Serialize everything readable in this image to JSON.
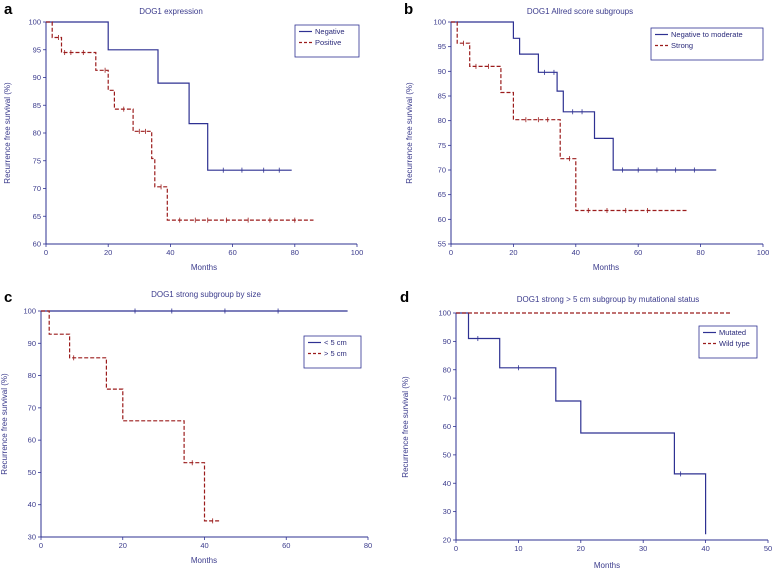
{
  "chart_data": [
    {
      "type": "line",
      "panel_label": "a",
      "title": "DOG1 expression",
      "xlabel": "Months",
      "ylabel": "Recurrence free survival (%)",
      "xlim": [
        0,
        100
      ],
      "ylim": [
        60,
        100
      ],
      "xticks": [
        0,
        20,
        40,
        60,
        80,
        100
      ],
      "yticks": [
        60,
        65,
        70,
        75,
        80,
        85,
        90,
        95,
        100
      ],
      "legend_position": "top-right",
      "series": [
        {
          "name": "Negative",
          "color": "#2e3192",
          "dash": "solid",
          "steps": [
            [
              0,
              100
            ],
            [
              20,
              95
            ],
            [
              36,
              89
            ],
            [
              46,
              81.7
            ],
            [
              52,
              73.3
            ],
            [
              79,
              73.3
            ]
          ],
          "censors": [
            [
              57,
              73.3
            ],
            [
              63,
              73.3
            ],
            [
              70,
              73.3
            ],
            [
              75,
              73.3
            ]
          ]
        },
        {
          "name": "Positive",
          "color": "#9b1c1c",
          "dash": "dashed",
          "steps": [
            [
              0,
              100
            ],
            [
              2,
              97.2
            ],
            [
              5,
              94.5
            ],
            [
              9,
              94.5
            ],
            [
              16,
              91.3
            ],
            [
              20,
              87.7
            ],
            [
              22,
              84.3
            ],
            [
              28,
              80.3
            ],
            [
              34,
              75.4
            ],
            [
              35,
              70.3
            ],
            [
              39,
              64.3
            ],
            [
              86,
              64.3
            ]
          ],
          "censors": [
            [
              4,
              97.2
            ],
            [
              6,
              94.5
            ],
            [
              8,
              94.5
            ],
            [
              12,
              94.5
            ],
            [
              19,
              91.3
            ],
            [
              25,
              84.3
            ],
            [
              30,
              80.3
            ],
            [
              32,
              80.3
            ],
            [
              37,
              70.3
            ],
            [
              43,
              64.3
            ],
            [
              48,
              64.3
            ],
            [
              52,
              64.3
            ],
            [
              58,
              64.3
            ],
            [
              65,
              64.3
            ],
            [
              72,
              64.3
            ],
            [
              80,
              64.3
            ]
          ]
        }
      ]
    },
    {
      "type": "line",
      "panel_label": "b",
      "title": "DOG1 Allred score subgroups",
      "xlabel": "Months",
      "ylabel": "Recurrence free survival (%)",
      "xlim": [
        0,
        100
      ],
      "ylim": [
        55,
        100
      ],
      "xticks": [
        0,
        20,
        40,
        60,
        80,
        100
      ],
      "yticks": [
        55,
        60,
        65,
        70,
        75,
        80,
        85,
        90,
        95,
        100
      ],
      "legend_position": "top-right",
      "series": [
        {
          "name": "Negative to moderate",
          "color": "#2e3192",
          "dash": "solid",
          "steps": [
            [
              0,
              100
            ],
            [
              20,
              96.7
            ],
            [
              22,
              93.5
            ],
            [
              28,
              89.8
            ],
            [
              34,
              86
            ],
            [
              36,
              81.8
            ],
            [
              46,
              76.4
            ],
            [
              52,
              70
            ],
            [
              85,
              70
            ]
          ],
          "censors": [
            [
              30,
              89.8
            ],
            [
              33,
              89.8
            ],
            [
              39,
              81.8
            ],
            [
              42,
              81.8
            ],
            [
              55,
              70
            ],
            [
              60,
              70
            ],
            [
              66,
              70
            ],
            [
              72,
              70
            ],
            [
              78,
              70
            ]
          ]
        },
        {
          "name": "Strong",
          "color": "#9b1c1c",
          "dash": "dashed",
          "steps": [
            [
              0,
              100
            ],
            [
              2,
              95.7
            ],
            [
              6,
              91
            ],
            [
              16,
              85.7
            ],
            [
              20,
              80.2
            ],
            [
              35,
              72.3
            ],
            [
              40,
              61.8
            ],
            [
              76,
              61.8
            ]
          ],
          "censors": [
            [
              4,
              95.7
            ],
            [
              8,
              91
            ],
            [
              12,
              91
            ],
            [
              24,
              80.2
            ],
            [
              28,
              80.2
            ],
            [
              31,
              80.2
            ],
            [
              38,
              72.3
            ],
            [
              44,
              61.8
            ],
            [
              50,
              61.8
            ],
            [
              56,
              61.8
            ],
            [
              63,
              61.8
            ]
          ]
        }
      ]
    },
    {
      "type": "line",
      "panel_label": "c",
      "title": "DOG1 strong subgroup by size",
      "xlabel": "Months",
      "ylabel": "Recurrence free survival (%)",
      "xlim": [
        0,
        80
      ],
      "ylim": [
        30,
        100
      ],
      "xticks": [
        0,
        20,
        40,
        60,
        80
      ],
      "yticks": [
        30,
        40,
        50,
        60,
        70,
        80,
        90,
        100
      ],
      "legend_position": "top-right",
      "series": [
        {
          "name": "< 5 cm",
          "color": "#2e3192",
          "dash": "solid",
          "steps": [
            [
              0,
              100
            ],
            [
              75,
              100
            ]
          ],
          "censors": [
            [
              23,
              100
            ],
            [
              32,
              100
            ],
            [
              45,
              100
            ],
            [
              58,
              100
            ]
          ]
        },
        {
          "name": "> 5 cm",
          "color": "#9b1c1c",
          "dash": "dashed",
          "steps": [
            [
              0,
              100
            ],
            [
              2,
              92.8
            ],
            [
              7,
              85.5
            ],
            [
              16,
              75.8
            ],
            [
              20,
              66
            ],
            [
              35,
              53
            ],
            [
              40,
              35
            ],
            [
              44,
              35
            ]
          ],
          "censors": [
            [
              8,
              85.5
            ],
            [
              37,
              53
            ],
            [
              42,
              35
            ]
          ]
        }
      ]
    },
    {
      "type": "line",
      "panel_label": "d",
      "title": "DOG1 strong > 5 cm subgroup by mutational status",
      "xlabel": "Months",
      "ylabel": "Recurrence free survival (%)",
      "xlim": [
        0,
        50
      ],
      "ylim": [
        20,
        100
      ],
      "xticks": [
        0,
        10,
        20,
        30,
        40,
        50
      ],
      "yticks": [
        20,
        30,
        40,
        50,
        60,
        70,
        80,
        90,
        100
      ],
      "legend_position": "top-right",
      "series": [
        {
          "name": "Mutated",
          "color": "#2e3192",
          "dash": "solid",
          "steps": [
            [
              0,
              100
            ],
            [
              2,
              91
            ],
            [
              7,
              80.7
            ],
            [
              16,
              69
            ],
            [
              20,
              57.7
            ],
            [
              35,
              43.3
            ],
            [
              40,
              22
            ]
          ],
          "censors": [
            [
              3.5,
              91
            ],
            [
              10,
              80.7
            ],
            [
              36,
              43.3
            ]
          ]
        },
        {
          "name": "Wild type",
          "color": "#9b1c1c",
          "dash": "dashed",
          "steps": [
            [
              0,
              100
            ],
            [
              44,
              100
            ]
          ],
          "censors": []
        }
      ]
    }
  ]
}
